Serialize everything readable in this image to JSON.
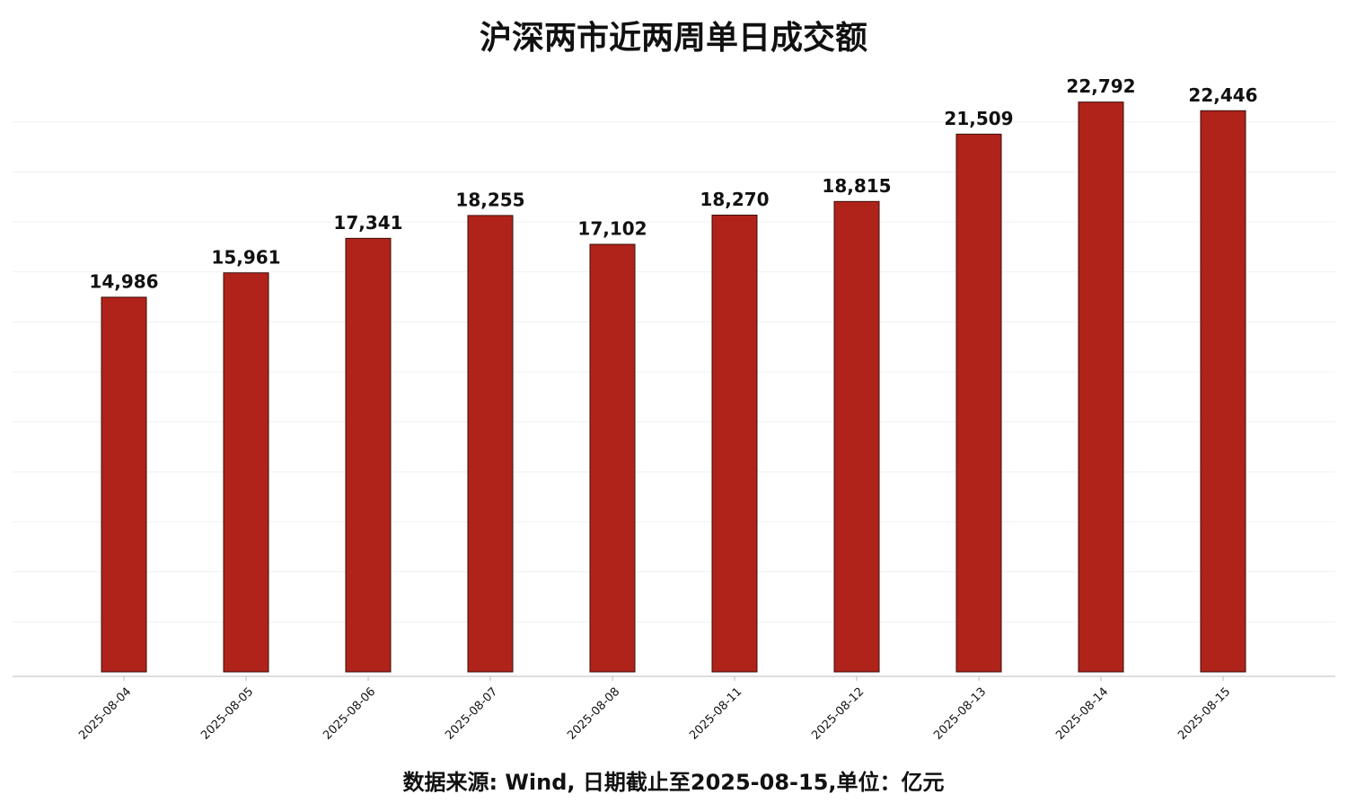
{
  "chart_data": {
    "type": "bar",
    "title": "沪深两市近两周单日成交额",
    "categories": [
      "2025-08-04",
      "2025-08-05",
      "2025-08-06",
      "2025-08-07",
      "2025-08-08",
      "2025-08-11",
      "2025-08-12",
      "2025-08-13",
      "2025-08-14",
      "2025-08-15"
    ],
    "values": [
      14986,
      15961,
      17341,
      18255,
      17102,
      18270,
      18815,
      21509,
      22792,
      22446
    ],
    "value_labels": [
      "14,986",
      "15,961",
      "17,341",
      "18,255",
      "17,102",
      "18,270",
      "18,815",
      "21,509",
      "22,792",
      "22,446"
    ],
    "color": "#b0231a",
    "ylim": [
      0,
      24000
    ],
    "yticks": [
      2000,
      4000,
      6000,
      8000,
      10000,
      12000,
      14000,
      16000,
      18000,
      20000,
      22000
    ],
    "grid": true,
    "footnote": "数据来源: Wind, 日期截止至2025-08-15,单位：亿元"
  }
}
